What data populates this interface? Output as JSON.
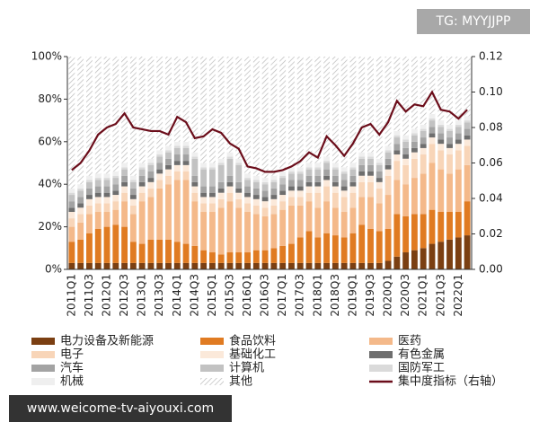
{
  "chart_data": {
    "type": "bar",
    "stacked": true,
    "categories": [
      "2011Q1",
      null,
      "2011Q3",
      null,
      "2012Q1",
      null,
      "2012Q3",
      null,
      "2013Q1",
      null,
      "2013Q3",
      null,
      "2014Q1",
      null,
      "2014Q3",
      null,
      "2015Q1",
      null,
      "2015Q3",
      null,
      "2016Q1",
      null,
      "2016Q3",
      null,
      "2017Q1",
      null,
      "2017Q3",
      null,
      "2018Q1",
      null,
      "2018Q3",
      null,
      "2019Q1",
      null,
      "2019Q3",
      null,
      "2020Q1",
      null,
      "2020Q3",
      null,
      "2021Q1",
      null,
      "2021Q3",
      null,
      "2022Q1",
      null
    ],
    "ylim": [
      0,
      100
    ],
    "yticks": [
      {
        "value": 0,
        "label": "0%"
      },
      {
        "value": 20,
        "label": "20%"
      },
      {
        "value": 40,
        "label": "40%"
      },
      {
        "value": 60,
        "label": "60%"
      },
      {
        "value": 80,
        "label": "80%"
      },
      {
        "value": 100,
        "label": "100%"
      }
    ],
    "y2lim": [
      0,
      0.12
    ],
    "y2ticks": [
      {
        "value": 0,
        "label": "0.00"
      },
      0.02,
      0.04,
      0.06,
      0.08,
      {
        "value": 0.1,
        "label": "0.10"
      },
      0.12
    ],
    "series": [
      {
        "name": "电力设备及新能源",
        "color": "#7b3f12",
        "values": [
          3,
          3,
          3,
          3,
          3,
          3,
          3,
          3,
          3,
          3,
          3,
          3,
          3,
          3,
          3,
          3,
          3,
          3,
          3,
          3,
          3,
          3,
          3,
          3,
          3,
          3,
          3,
          3,
          3,
          3,
          3,
          3,
          3,
          3,
          3,
          3,
          4,
          6,
          8,
          9,
          10,
          12,
          13,
          14,
          15,
          16
        ]
      },
      {
        "name": "食品饮料",
        "color": "#e07b22",
        "values": [
          10,
          11,
          14,
          16,
          17,
          18,
          17,
          10,
          9,
          11,
          11,
          11,
          10,
          9,
          8,
          6,
          5,
          4,
          5,
          5,
          5,
          6,
          6,
          7,
          8,
          9,
          12,
          15,
          12,
          14,
          13,
          12,
          14,
          18,
          16,
          15,
          15,
          20,
          17,
          17,
          16,
          16,
          14,
          13,
          12,
          16
        ]
      },
      {
        "name": "医药",
        "color": "#f4b98a",
        "values": [
          7,
          8,
          9,
          8,
          7,
          7,
          12,
          13,
          20,
          20,
          24,
          26,
          29,
          30,
          21,
          18,
          19,
          22,
          24,
          21,
          19,
          17,
          16,
          16,
          17,
          18,
          15,
          14,
          14,
          15,
          13,
          12,
          12,
          13,
          15,
          13,
          16,
          16,
          15,
          17,
          19,
          22,
          20,
          18,
          20,
          17
        ]
      },
      {
        "name": "电子",
        "color": "#f8d5b8",
        "values": [
          4,
          4,
          4,
          4,
          4,
          4,
          4,
          4,
          4,
          4,
          4,
          4,
          4,
          4,
          4,
          4,
          4,
          4,
          4,
          4,
          4,
          4,
          4,
          4,
          4,
          4,
          4,
          4,
          7,
          7,
          7,
          7,
          7,
          7,
          7,
          7,
          9,
          9,
          9,
          9,
          9,
          9,
          9,
          9,
          9,
          9
        ]
      },
      {
        "name": "基础化工",
        "color": "#fbe9da",
        "values": [
          3,
          3,
          3,
          3,
          3,
          3,
          3,
          3,
          3,
          3,
          3,
          3,
          3,
          3,
          3,
          3,
          3,
          3,
          3,
          3,
          3,
          3,
          3,
          3,
          3,
          3,
          3,
          3,
          3,
          3,
          3,
          3,
          3,
          3,
          3,
          3,
          3,
          3,
          3,
          3,
          3,
          3,
          3,
          3,
          3,
          3
        ]
      },
      {
        "name": "有色金属",
        "color": "#6e6e6e",
        "values": [
          2,
          2,
          2,
          2,
          2,
          2,
          2,
          2,
          2,
          2,
          2,
          2,
          2,
          2,
          2,
          2,
          2,
          2,
          2,
          2,
          2,
          2,
          2,
          2,
          2,
          2,
          2,
          2,
          2,
          2,
          2,
          2,
          2,
          2,
          2,
          2,
          2,
          2,
          2,
          2,
          2,
          2,
          2,
          2,
          2,
          2
        ]
      },
      {
        "name": "汽车",
        "color": "#a3a3a3",
        "values": [
          3,
          3,
          3,
          3,
          3,
          3,
          3,
          3,
          3,
          3,
          3,
          3,
          3,
          3,
          3,
          3,
          3,
          3,
          3,
          3,
          3,
          3,
          3,
          3,
          3,
          3,
          3,
          3,
          3,
          3,
          3,
          3,
          3,
          3,
          3,
          3,
          3,
          3,
          3,
          3,
          3,
          3,
          3,
          3,
          3,
          3
        ]
      },
      {
        "name": "计算机",
        "color": "#c2c2c2",
        "values": [
          3,
          3,
          3,
          3,
          3,
          3,
          3,
          3,
          3,
          3,
          3,
          3,
          3,
          3,
          8,
          8,
          8,
          8,
          8,
          8,
          3,
          3,
          3,
          3,
          3,
          3,
          3,
          3,
          3,
          3,
          3,
          3,
          3,
          3,
          3,
          3,
          3,
          3,
          3,
          3,
          3,
          3,
          3,
          3,
          3,
          3
        ]
      },
      {
        "name": "国防军工",
        "color": "#dadada",
        "values": [
          1,
          1,
          1,
          1,
          1,
          1,
          1,
          1,
          1,
          1,
          1,
          1,
          1,
          1,
          1,
          1,
          1,
          1,
          1,
          1,
          1,
          1,
          1,
          1,
          1,
          1,
          1,
          1,
          1,
          1,
          1,
          1,
          1,
          1,
          1,
          1,
          1,
          1,
          1,
          1,
          1,
          1,
          1,
          1,
          1,
          1
        ]
      },
      {
        "name": "机械",
        "color": "#efefef",
        "values": [
          2,
          2,
          2,
          2,
          2,
          2,
          2,
          2,
          2,
          2,
          2,
          2,
          2,
          2,
          2,
          2,
          2,
          2,
          2,
          2,
          2,
          2,
          2,
          2,
          2,
          2,
          2,
          2,
          2,
          2,
          2,
          2,
          2,
          2,
          2,
          2,
          2,
          2,
          2,
          2,
          2,
          2,
          2,
          2,
          2,
          2
        ]
      },
      {
        "name": "其他",
        "color": "#bbbbbb",
        "hatch": true,
        "values": [
          62,
          60,
          56,
          55,
          55,
          54,
          50,
          56,
          50,
          48,
          44,
          42,
          40,
          40,
          45,
          50,
          50,
          48,
          45,
          48,
          55,
          56,
          57,
          56,
          54,
          52,
          52,
          50,
          50,
          47,
          50,
          52,
          50,
          45,
          45,
          48,
          42,
          35,
          37,
          34,
          32,
          27,
          30,
          32,
          30,
          28
        ]
      },
      {
        "name": "集中度指标（右轴）",
        "color": "#6b0d1a",
        "axis": "y2",
        "values": [
          0.056,
          0.06,
          0.067,
          0.076,
          0.08,
          0.082,
          0.088,
          0.08,
          0.079,
          0.078,
          0.078,
          0.076,
          0.086,
          0.083,
          0.074,
          0.075,
          0.079,
          0.077,
          0.071,
          0.068,
          0.058,
          0.057,
          0.055,
          0.055,
          0.056,
          0.058,
          0.061,
          0.066,
          0.063,
          0.075,
          0.07,
          0.064,
          0.071,
          0.08,
          0.082,
          0.076,
          0.083,
          0.095,
          0.089,
          0.093,
          0.092,
          0.1,
          0.09,
          0.089,
          0.085,
          0.09
        ]
      }
    ],
    "annotations": [
      "TG: MYYJJPP",
      "www.weicome-tv-aiyouxi.com"
    ]
  }
}
